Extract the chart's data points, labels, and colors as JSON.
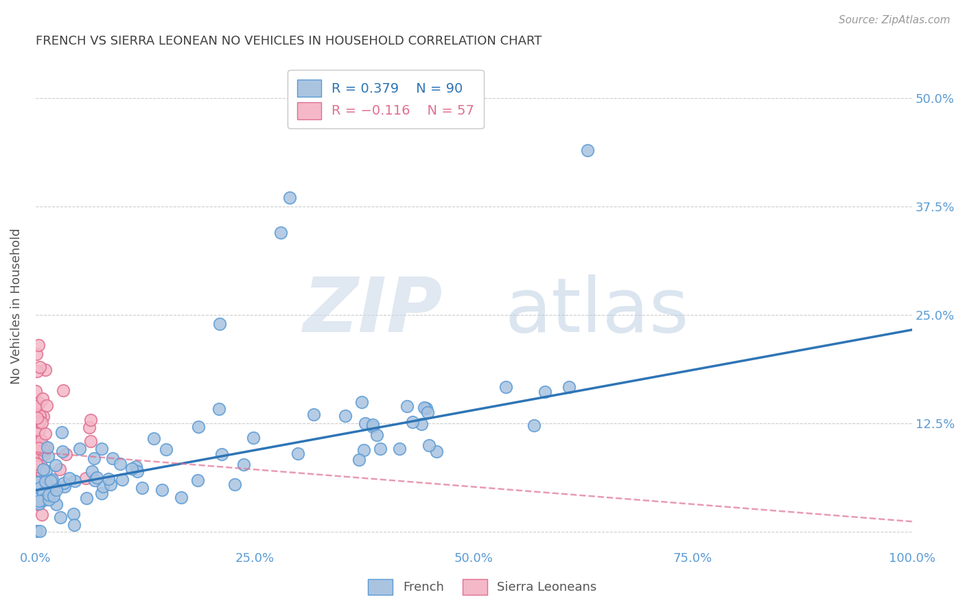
{
  "title": "FRENCH VS SIERRA LEONEAN NO VEHICLES IN HOUSEHOLD CORRELATION CHART",
  "source": "Source: ZipAtlas.com",
  "ylabel": "No Vehicles in Household",
  "xlim": [
    0,
    1.0
  ],
  "ylim": [
    -0.02,
    0.54
  ],
  "xticks": [
    0.0,
    0.25,
    0.5,
    0.75,
    1.0
  ],
  "xticklabels": [
    "0.0%",
    "25.0%",
    "50.0%",
    "75.0%",
    "100.0%"
  ],
  "yticks": [
    0.0,
    0.125,
    0.25,
    0.375,
    0.5
  ],
  "yticklabels_right": [
    "",
    "12.5%",
    "25.0%",
    "37.5%",
    "50.0%"
  ],
  "french_color": "#aac4e0",
  "sierra_color": "#f4b8c8",
  "french_edge": "#5b9bd5",
  "sierra_edge": "#e07090",
  "french_line_color": "#2e75b6",
  "sierra_line_color": "#e07090",
  "legend_r1": "R = 0.379",
  "legend_n1": "N = 90",
  "legend_r2": "R = -0.116",
  "legend_n2": "N = 57",
  "watermark_zip": "ZIP",
  "watermark_atlas": "atlas",
  "background_color": "#ffffff",
  "grid_color": "#cccccc",
  "title_color": "#404040",
  "axis_label_color": "#555555",
  "tick_color": "#5b9bd5",
  "french_line_intercept": 0.048,
  "french_line_slope": 0.185,
  "sierra_line_intercept": 0.092,
  "sierra_line_slope": -0.08
}
